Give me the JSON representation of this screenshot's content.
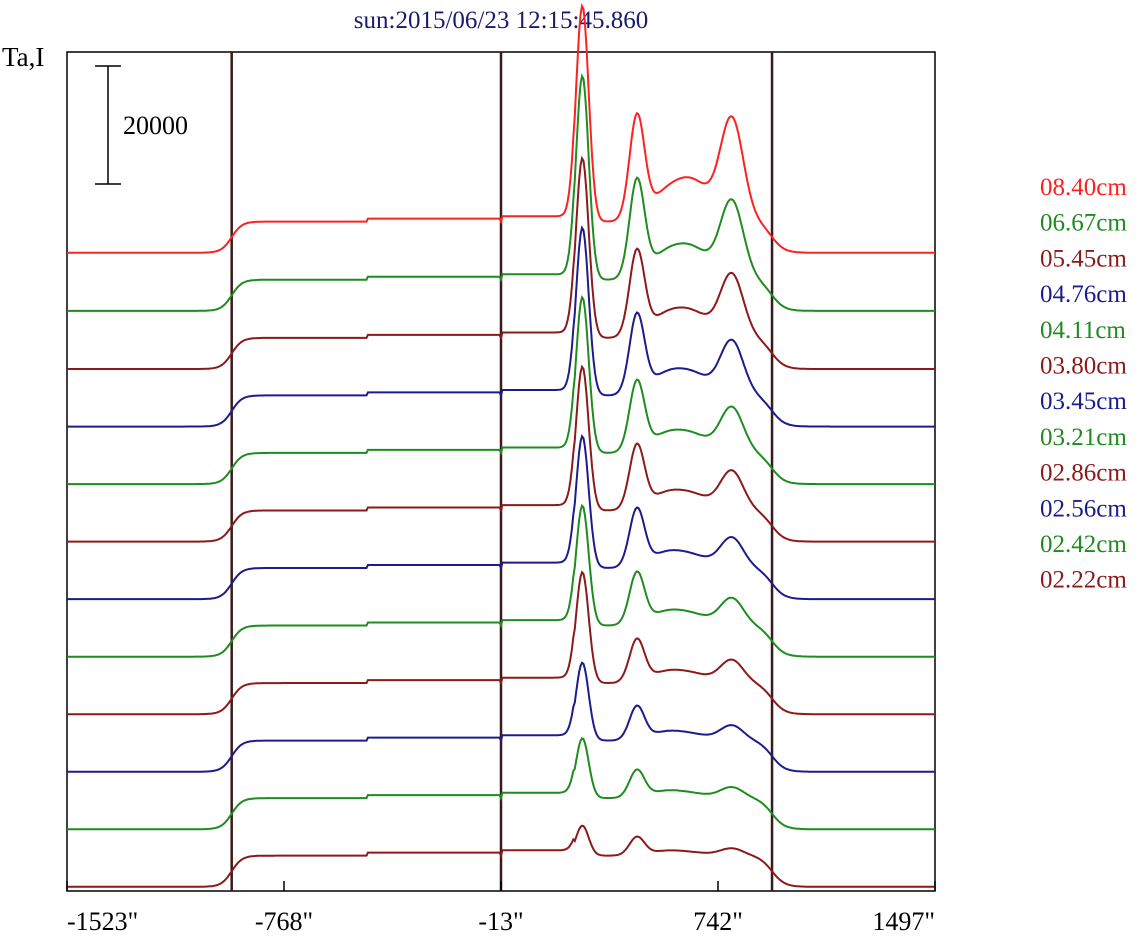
{
  "chart_data": {
    "type": "line",
    "title": "sun:2015/06/23 12:15:45.860",
    "ylabel": "Ta,I",
    "xlabel": "",
    "xlim": [
      -1523,
      1497
    ],
    "ylim": [
      0,
      140000
    ],
    "xticks": [
      "-1523\"",
      "-768\"",
      "-13\"",
      "742\"",
      "1497\""
    ],
    "xtick_values": [
      -1523,
      -768,
      -13,
      742,
      1497
    ],
    "vlines": [
      -950,
      -13,
      930
    ],
    "scale_bar": {
      "label": "20000",
      "value": 20000
    },
    "series_offset": 9500,
    "series": [
      {
        "name": "08.40cm",
        "color": "#ff2020",
        "baseline": 2000,
        "peak1": 36000,
        "peak2": 17000,
        "peak3": 17000
      },
      {
        "name": "06.67cm",
        "color": "#1f8c1f",
        "baseline": 1800,
        "peak1": 34000,
        "peak2": 16000,
        "peak3": 13000
      },
      {
        "name": "05.45cm",
        "color": "#8b1a1a",
        "baseline": 1600,
        "peak1": 30000,
        "peak2": 14000,
        "peak3": 10500
      },
      {
        "name": "04.76cm",
        "color": "#1c1c8c",
        "baseline": 1500,
        "peak1": 28000,
        "peak2": 13000,
        "peak3": 9000
      },
      {
        "name": "04.11cm",
        "color": "#1f8c1f",
        "baseline": 1400,
        "peak1": 26000,
        "peak2": 11500,
        "peak3": 7500
      },
      {
        "name": "03.80cm",
        "color": "#8b1a1a",
        "baseline": 1300,
        "peak1": 24000,
        "peak2": 10500,
        "peak3": 6500
      },
      {
        "name": "03.45cm",
        "color": "#1c1c8c",
        "baseline": 1200,
        "peak1": 22000,
        "peak2": 9500,
        "peak3": 5000
      },
      {
        "name": "03.21cm",
        "color": "#1f8c1f",
        "baseline": 1100,
        "peak1": 20000,
        "peak2": 8500,
        "peak3": 4500
      },
      {
        "name": "02.86cm",
        "color": "#8b1a1a",
        "baseline": 1000,
        "peak1": 18500,
        "peak2": 7000,
        "peak3": 3800
      },
      {
        "name": "02.56cm",
        "color": "#1c1c8c",
        "baseline": 900,
        "peak1": 13000,
        "peak2": 5500,
        "peak3": 2500
      },
      {
        "name": "02.42cm",
        "color": "#1f8c1f",
        "baseline": 800,
        "peak1": 10000,
        "peak2": 4500,
        "peak3": 1800
      },
      {
        "name": "02.22cm",
        "color": "#8b1a1a",
        "baseline": 700,
        "peak1": 5000,
        "peak2": 3000,
        "peak3": 1200
      }
    ]
  }
}
